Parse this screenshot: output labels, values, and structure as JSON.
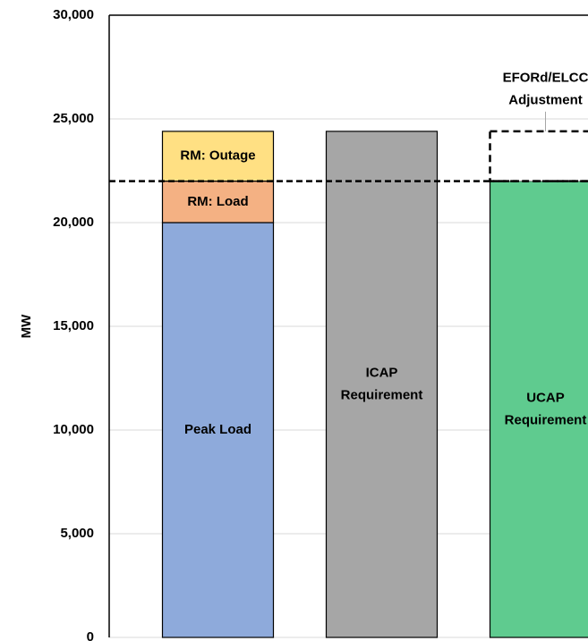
{
  "chart_data": {
    "type": "stacked_bar",
    "y_label": "MW",
    "categories": [
      null,
      null,
      null
    ],
    "series": [
      {
        "name": "Peak Load",
        "color": "#8eaadb",
        "values": [
          20000,
          null,
          null
        ]
      },
      {
        "name": "RM: Load",
        "color": "#f4b183",
        "values": [
          2000,
          null,
          null
        ]
      },
      {
        "name": "RM: Outage",
        "color": "#ffe083",
        "values": [
          2400,
          null,
          null
        ]
      },
      {
        "name": "ICAP\nRequirement",
        "color": "#a6a6a6",
        "values": [
          null,
          24400,
          null
        ]
      },
      {
        "name": "UCAP\nRequirement",
        "color": "#5fcb8f",
        "values": [
          null,
          null,
          22000
        ]
      },
      {
        "name": "EFORd/ELCC\nAdjustment",
        "color": "#ffffff",
        "style": "dashed",
        "values": [
          null,
          null,
          2400
        ]
      }
    ],
    "reference_line": {
      "value": 22000,
      "style": "dashed"
    },
    "ylim": [
      0,
      30000
    ],
    "yticks": [
      {
        "value": 0,
        "label": "0"
      },
      {
        "value": 5000,
        "label": "5,000"
      },
      {
        "value": 10000,
        "label": "10,000"
      },
      {
        "value": 15000,
        "label": "15,000"
      },
      {
        "value": 20000,
        "label": "20,000"
      },
      {
        "value": 25000,
        "label": "25,000"
      },
      {
        "value": 30000,
        "label": "30,000"
      }
    ],
    "grid": true
  }
}
